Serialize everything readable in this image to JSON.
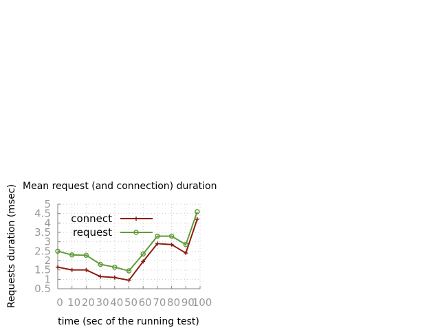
{
  "chart_data": {
    "type": "line",
    "title": "Mean request (and connection) duration",
    "xlabel": "time (sec of the running test)",
    "ylabel": "Requests duration (msec)",
    "xlim": [
      0,
      100
    ],
    "ylim": [
      0.5,
      5
    ],
    "x_ticks": [
      "0",
      "10",
      "20",
      "30",
      "40",
      "50",
      "60",
      "70",
      "80",
      "90",
      "100"
    ],
    "y_ticks": [
      "0.5",
      "1",
      "1.5",
      "2",
      "2.5",
      "3",
      "3.5",
      "4",
      "4.5",
      "5"
    ],
    "grid": true,
    "legend_position": "top-left",
    "series": [
      {
        "name": "connect",
        "color": "#8b1a0e",
        "marker": "plus",
        "x": [
          0,
          10,
          20,
          30,
          40,
          50,
          60,
          70,
          80,
          90,
          98
        ],
        "y": [
          1.65,
          1.5,
          1.5,
          1.15,
          1.1,
          0.95,
          1.95,
          2.9,
          2.85,
          2.4,
          4.2
        ]
      },
      {
        "name": "request",
        "color": "#5e9c36",
        "marker": "circle",
        "x": [
          0,
          10,
          20,
          30,
          40,
          50,
          60,
          70,
          80,
          90,
          98
        ],
        "y": [
          2.5,
          2.3,
          2.28,
          1.8,
          1.65,
          1.45,
          2.35,
          3.3,
          3.3,
          2.85,
          4.6
        ]
      }
    ]
  }
}
